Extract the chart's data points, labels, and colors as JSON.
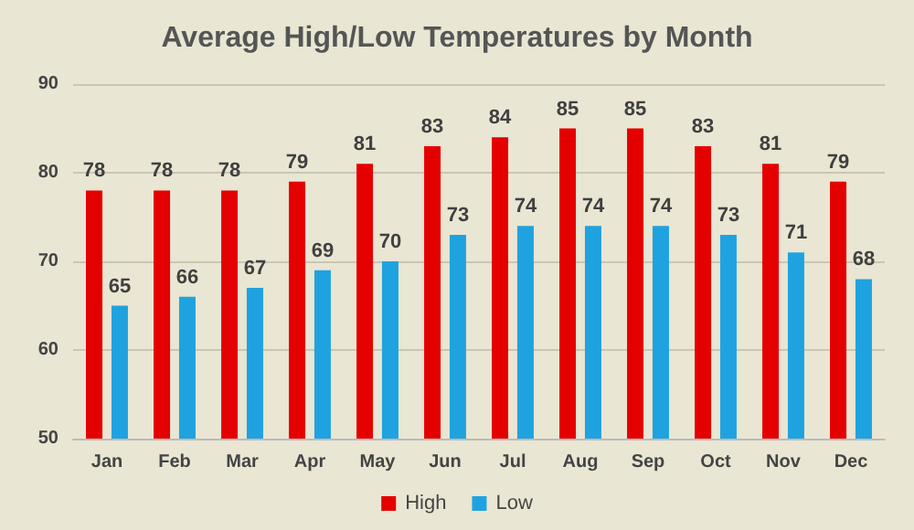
{
  "chart_data": {
    "type": "bar",
    "title": "Average High/Low Temperatures by Month",
    "categories": [
      "Jan",
      "Feb",
      "Mar",
      "Apr",
      "May",
      "Jun",
      "Jul",
      "Aug",
      "Sep",
      "Oct",
      "Nov",
      "Dec"
    ],
    "series": [
      {
        "name": "High",
        "color": "#e50000",
        "values": [
          78,
          78,
          78,
          79,
          81,
          83,
          84,
          85,
          85,
          83,
          81,
          79
        ]
      },
      {
        "name": "Low",
        "color": "#1fa3e0",
        "values": [
          65,
          66,
          67,
          69,
          70,
          73,
          74,
          74,
          74,
          73,
          71,
          68
        ]
      }
    ],
    "ylim": [
      50,
      90
    ],
    "yticks": [
      50,
      60,
      70,
      80,
      90
    ],
    "grid": "y",
    "legend": "bottom",
    "data_labels": true
  }
}
